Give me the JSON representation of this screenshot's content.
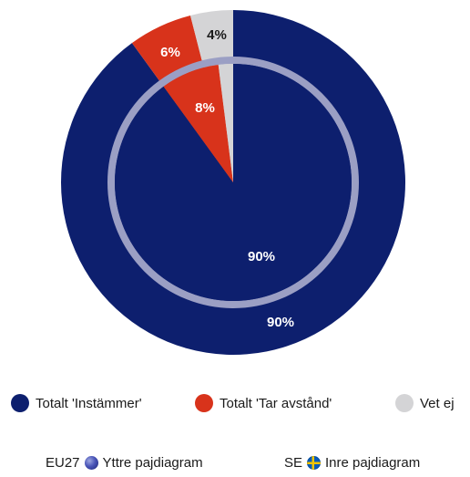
{
  "chart_data": {
    "type": "pie",
    "rings": [
      {
        "name": "EU27",
        "ring": "outer",
        "slices": [
          {
            "label": "Totalt 'Instämmer'",
            "value": 90,
            "display": "90%"
          },
          {
            "label": "Totalt 'Tar avstånd'",
            "value": 6,
            "display": "6%"
          },
          {
            "label": "Vet ej",
            "value": 4,
            "display": "4%"
          }
        ]
      },
      {
        "name": "SE",
        "ring": "inner",
        "slices": [
          {
            "label": "Totalt 'Instämmer'",
            "value": 90,
            "display": "90%"
          },
          {
            "label": "Totalt 'Tar avstånd'",
            "value": 8,
            "display": "8%"
          },
          {
            "label": "Vet ej",
            "value": 2,
            "display": ""
          }
        ]
      }
    ],
    "legend": {
      "placement": "bottom",
      "items": [
        {
          "label": "Totalt 'Instämmer'",
          "color": "#0d1f6e"
        },
        {
          "label": "Totalt 'Tar avstånd'",
          "color": "#d8331b"
        },
        {
          "label": "Vet ej",
          "color": "#d4d4d6"
        }
      ]
    },
    "ring_legend": {
      "outer": {
        "prefix": "EU27",
        "label": "Yttre pajdiagram"
      },
      "inner": {
        "prefix": "SE",
        "label": "Inre pajdiagram"
      }
    }
  },
  "colors": {
    "instammer": "#0d1f6e",
    "tar_avstand": "#d8331b",
    "vet_ej": "#d4d4d6",
    "ring_separator": "#9b9fc4",
    "label_text": "#ffffff",
    "label_text_dark": "#1a1a1a"
  }
}
